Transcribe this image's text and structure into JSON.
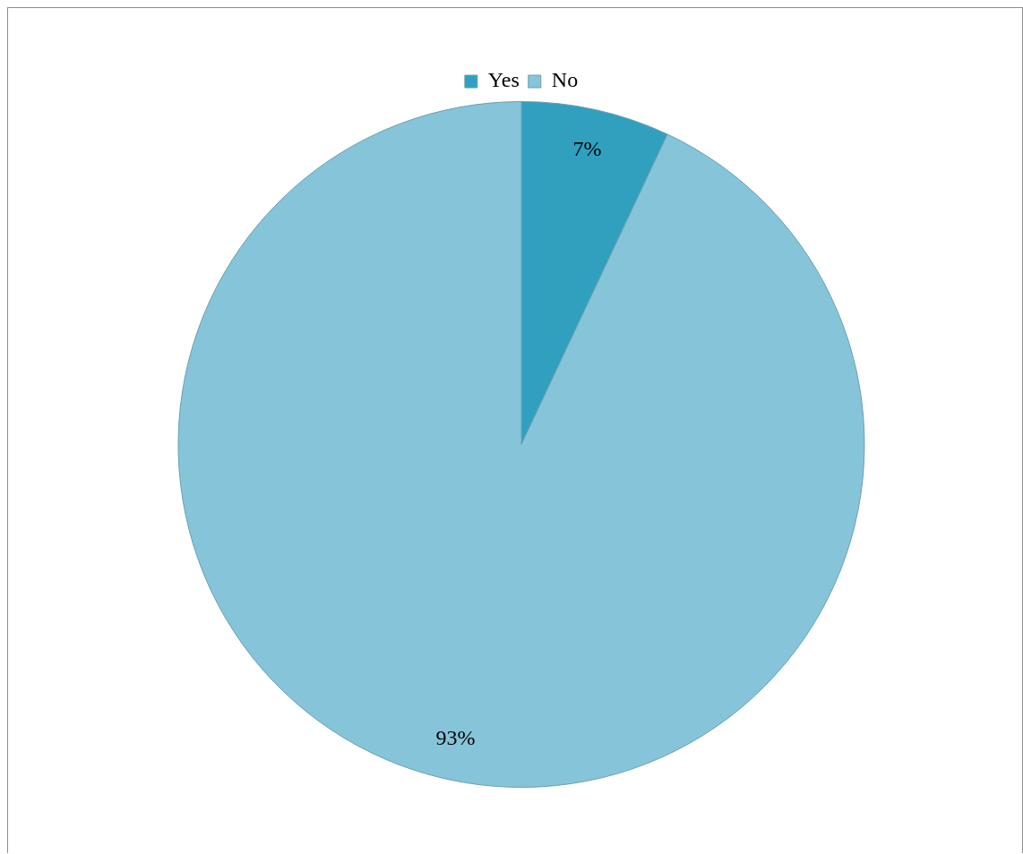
{
  "chart_data": {
    "type": "pie",
    "categories": [
      "Yes",
      "No"
    ],
    "values": [
      7,
      93
    ],
    "colors": [
      "#31a0bf",
      "#86c4d9"
    ],
    "value_labels": [
      "7%",
      "93%"
    ],
    "legend": "top"
  }
}
